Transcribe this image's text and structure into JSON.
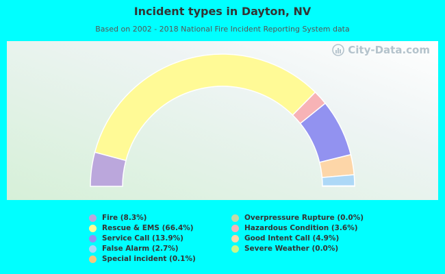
{
  "title": "Incident types in Dayton, NV",
  "subtitle": "Based on 2002 - 2018 National Fire Incident Reporting System data",
  "watermark": "City-Data.com",
  "chart_data": {
    "type": "pie",
    "subtype": "half-donut",
    "slices": [
      {
        "label": "Fire (8.3%)",
        "value": 8.3,
        "color": "#bba7dc"
      },
      {
        "label": "Rescue & EMS (66.4%)",
        "value": 66.4,
        "color": "#fffa96"
      },
      {
        "label": "Hazardous Condition (3.6%)",
        "value": 3.6,
        "color": "#f7b3b6"
      },
      {
        "label": "Service Call (13.9%)",
        "value": 13.9,
        "color": "#9292f0"
      },
      {
        "label": "Good Intent Call (4.9%)",
        "value": 4.9,
        "color": "#fdd6a8"
      },
      {
        "label": "False Alarm (2.7%)",
        "value": 2.7,
        "color": "#add8f7"
      },
      {
        "label": "Special incident (0.1%)",
        "value": 0.1,
        "color": "#f5c77e"
      },
      {
        "label": "Overpressure Rupture (0.0%)",
        "value": 0.0,
        "color": "#c2d9a8"
      },
      {
        "label": "Severe Weather (0.0%)",
        "value": 0.0,
        "color": "#c8f58a"
      }
    ],
    "legend": [
      {
        "label": "Fire (8.3%)",
        "color": "#bba7dc"
      },
      {
        "label": "Overpressure Rupture (0.0%)",
        "color": "#c2d9a8"
      },
      {
        "label": "Rescue & EMS (66.4%)",
        "color": "#fffa96"
      },
      {
        "label": "Hazardous Condition (3.6%)",
        "color": "#f7b3b6"
      },
      {
        "label": "Service Call (13.9%)",
        "color": "#9292f0"
      },
      {
        "label": "Good Intent Call (4.9%)",
        "color": "#fdd6a8"
      },
      {
        "label": "False Alarm (2.7%)",
        "color": "#add8f7"
      },
      {
        "label": "Severe Weather (0.0%)",
        "color": "#c8f58a"
      },
      {
        "label": "Special incident (0.1%)",
        "color": "#f5c77e"
      }
    ],
    "legend_placement": "bottom"
  }
}
